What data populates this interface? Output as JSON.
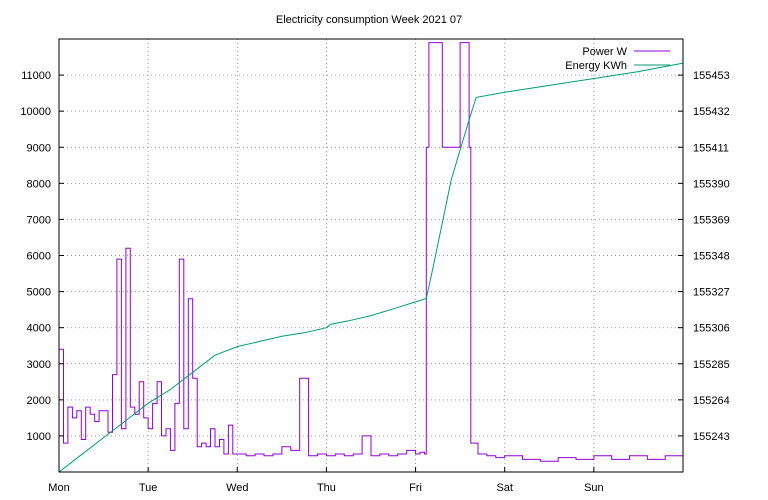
{
  "chart_data": {
    "type": "line",
    "title": "Electricity consumption Week 2021 07",
    "xlabel": "",
    "ylabel": "",
    "x_ticks": [
      "Mon",
      "Tue",
      "Wed",
      "Thu",
      "Fri",
      "Sat",
      "Sun"
    ],
    "xlim": [
      0,
      7
    ],
    "ylim": [
      0,
      12000
    ],
    "y_ticks": [
      1000,
      2000,
      3000,
      4000,
      5000,
      6000,
      7000,
      8000,
      9000,
      10000,
      11000
    ],
    "y2lim": [
      155222,
      155474
    ],
    "y2_ticks": [
      155243,
      155264,
      155285,
      155306,
      155327,
      155348,
      155369,
      155390,
      155411,
      155432,
      155453
    ],
    "grid": true,
    "legend_position": "top-right",
    "series": [
      {
        "name": "Power W",
        "axis": "left",
        "color": "#9400d3",
        "x": [
          0,
          0.05,
          0.1,
          0.15,
          0.2,
          0.25,
          0.3,
          0.35,
          0.4,
          0.45,
          0.5,
          0.55,
          0.6,
          0.65,
          0.7,
          0.75,
          0.8,
          0.85,
          0.9,
          0.95,
          1.0,
          1.05,
          1.1,
          1.15,
          1.2,
          1.25,
          1.3,
          1.35,
          1.4,
          1.45,
          1.5,
          1.55,
          1.6,
          1.65,
          1.7,
          1.75,
          1.8,
          1.85,
          1.9,
          1.95,
          2.0,
          2.1,
          2.2,
          2.3,
          2.4,
          2.5,
          2.6,
          2.7,
          2.8,
          2.9,
          3.0,
          3.1,
          3.2,
          3.3,
          3.4,
          3.5,
          3.6,
          3.7,
          3.8,
          3.9,
          4.0,
          4.05,
          4.1,
          4.12,
          4.15,
          4.3,
          4.5,
          4.6,
          4.62,
          4.7,
          4.8,
          4.9,
          5.0,
          5.2,
          5.4,
          5.6,
          5.8,
          6.0,
          6.2,
          6.4,
          6.6,
          6.8,
          7.0
        ],
        "values": [
          3400,
          800,
          1800,
          1500,
          1700,
          900,
          1800,
          1600,
          1400,
          1700,
          1700,
          1100,
          2700,
          5900,
          1200,
          6200,
          1800,
          1600,
          2500,
          1500,
          1200,
          1900,
          2500,
          1000,
          1200,
          600,
          1900,
          5900,
          1200,
          4800,
          2600,
          700,
          800,
          700,
          1200,
          700,
          900,
          500,
          1300,
          500,
          500,
          450,
          500,
          450,
          500,
          700,
          600,
          2600,
          450,
          500,
          450,
          500,
          450,
          500,
          1000,
          450,
          500,
          450,
          500,
          600,
          500,
          550,
          500,
          9000,
          11900,
          9000,
          11900,
          9000,
          800,
          500,
          450,
          400,
          450,
          350,
          300,
          400,
          350,
          450,
          350,
          450,
          350,
          450,
          450
        ]
      },
      {
        "name": "Energy KWh",
        "axis": "right",
        "color": "#009e73",
        "x": [
          0,
          0.25,
          0.5,
          0.75,
          1.0,
          1.25,
          1.5,
          1.75,
          2.0,
          2.25,
          2.5,
          2.75,
          3.0,
          3.05,
          3.25,
          3.5,
          3.75,
          4.0,
          4.12,
          4.2,
          4.4,
          4.6,
          4.68,
          5.0,
          5.5,
          6.0,
          6.5,
          7.0
        ],
        "values": [
          155222,
          155232,
          155242,
          155252,
          155262,
          155270,
          155280,
          155290,
          155295,
          155298,
          155301,
          155303,
          155306,
          155308,
          155310,
          155313,
          155317,
          155321,
          155323,
          155342,
          155392,
          155427,
          155440,
          155443,
          155447,
          155451,
          155455,
          155460
        ]
      }
    ]
  }
}
